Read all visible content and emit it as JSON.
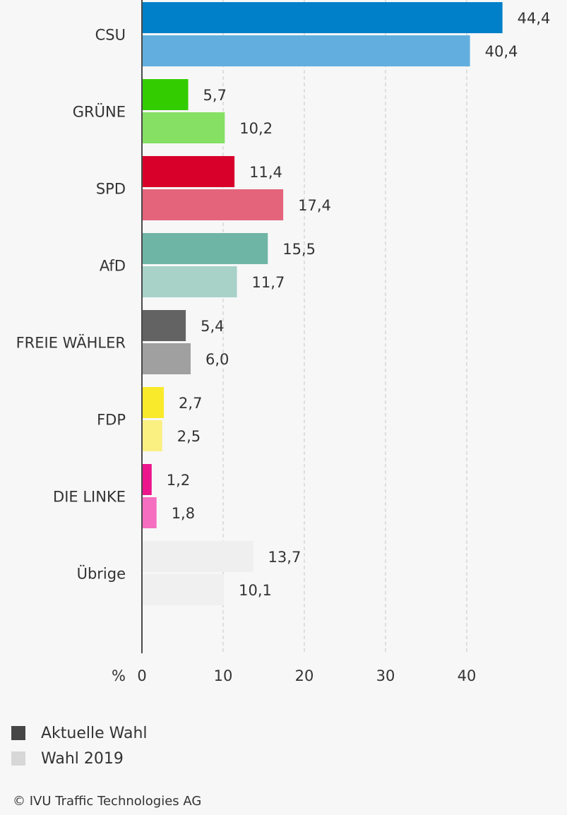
{
  "chart_data": {
    "type": "bar",
    "orientation": "horizontal",
    "categories": [
      "CSU",
      "GRÜNE",
      "SPD",
      "AfD",
      "FREIE WÄHLER",
      "FDP",
      "DIE LINKE",
      "Übrige"
    ],
    "series": [
      {
        "name": "Aktuelle Wahl",
        "values": [
          44.4,
          5.7,
          11.4,
          15.5,
          5.4,
          2.7,
          1.2,
          13.7
        ],
        "value_labels": [
          "44,4",
          "5,7",
          "11,4",
          "15,5",
          "5,4",
          "2,7",
          "1,2",
          "13,7"
        ],
        "colors": [
          "#0080c9",
          "#33cc00",
          "#d8002a",
          "#6fb5a5",
          "#636363",
          "#f9ea2b",
          "#ec168c",
          "#efefef"
        ]
      },
      {
        "name": "Wahl 2019",
        "values": [
          40.4,
          10.2,
          17.4,
          11.7,
          6.0,
          2.5,
          1.8,
          10.1
        ],
        "value_labels": [
          "40,4",
          "10,2",
          "17,4",
          "11,7",
          "6,0",
          "2,5",
          "1,8",
          "10,1"
        ],
        "colors": [
          "#62afdf",
          "#85e063",
          "#e4647c",
          "#a8d1c8",
          "#a0a0a0",
          "#faf082",
          "#f56ec0",
          "#f0f0f0"
        ]
      }
    ],
    "xlabel": "%",
    "xlim": [
      0,
      45
    ],
    "ticks": [
      0,
      10,
      20,
      30,
      40
    ],
    "grid": true,
    "legend_position": "bottom-left"
  },
  "legend": [
    {
      "label": "Aktuelle Wahl",
      "color": "#464646"
    },
    {
      "label": "Wahl 2019",
      "color": "#d7d7d7"
    }
  ],
  "source": "© IVU Traffic Technologies AG"
}
